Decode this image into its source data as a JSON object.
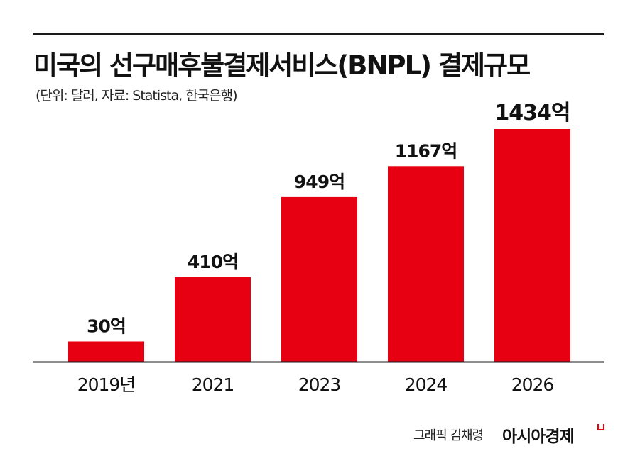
{
  "header": {
    "title": "미국의 선구매후불결제서비스(BNPL) 결제규모",
    "subtitle": "(단위: 달러, 자료: Statista, 한국은행)"
  },
  "footer": {
    "credit": "그래픽 김채령",
    "brand": "아시아경제"
  },
  "colors": {
    "bar": "#e60012",
    "axis": "#1a1a1a",
    "text": "#111111"
  },
  "chart_data": {
    "type": "bar",
    "title": "미국의 선구매후불결제서비스(BNPL) 결제규모",
    "subtitle": "(단위: 달러, 자료: Statista, 한국은행)",
    "categories": [
      "2019년",
      "2021",
      "2023",
      "2024",
      "2026"
    ],
    "values": [
      30,
      410,
      949,
      1167,
      1434
    ],
    "value_unit": "억 달러",
    "data_labels": [
      "30억",
      "410억",
      "949억",
      "1167억",
      "1434억"
    ],
    "xlabel": "",
    "ylabel": "",
    "grid": false,
    "legend": "none"
  }
}
